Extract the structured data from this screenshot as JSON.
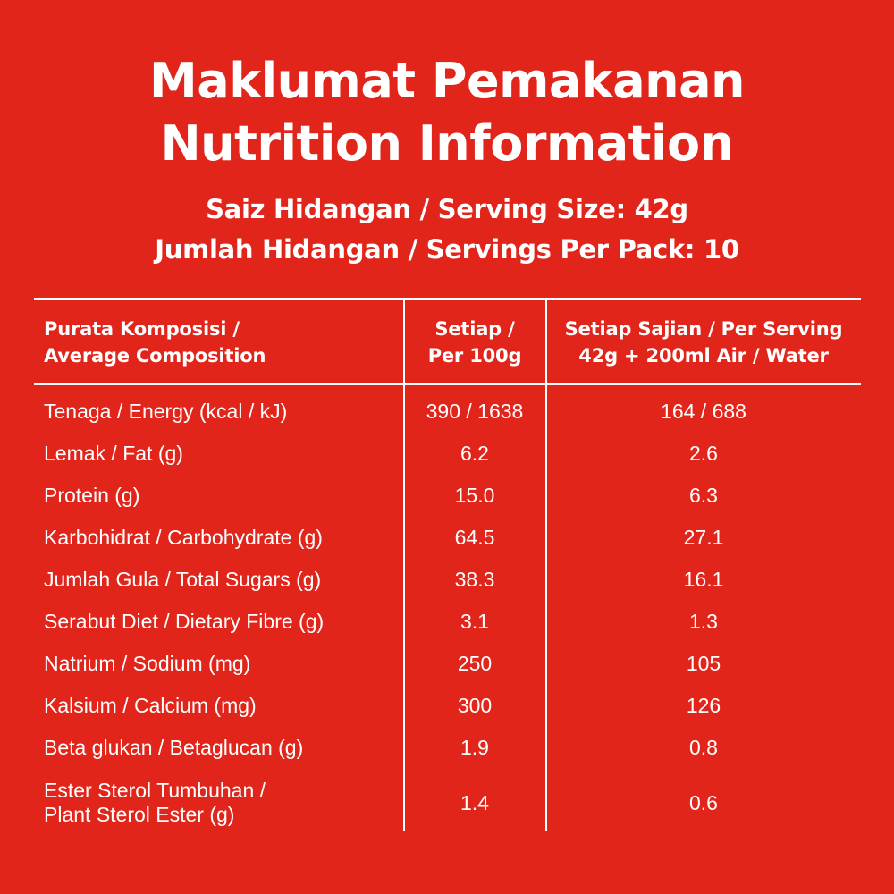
{
  "header": {
    "title_ms": "Maklumat Pemakanan",
    "title_en": "Nutrition Information",
    "serving_size": "Saiz Hidangan / Serving Size: 42g",
    "servings_per_pack": "Jumlah Hidangan / Servings Per Pack: 10"
  },
  "table": {
    "columns": {
      "composition": [
        "Purata Komposisi /",
        "Average Composition"
      ],
      "per_100g": [
        "Setiap /",
        "Per 100g"
      ],
      "per_serving": [
        "Setiap Sajian / Per Serving",
        "42g + 200ml Air / Water"
      ]
    },
    "rows": [
      {
        "name": "Tenaga / Energy (kcal / kJ)",
        "per_100g": "390 / 1638",
        "per_serving": "164 / 688"
      },
      {
        "name": "Lemak / Fat (g)",
        "per_100g": "6.2",
        "per_serving": "2.6"
      },
      {
        "name": "Protein (g)",
        "per_100g": "15.0",
        "per_serving": "6.3"
      },
      {
        "name": "Karbohidrat / Carbohydrate (g)",
        "per_100g": "64.5",
        "per_serving": "27.1"
      },
      {
        "name": "Jumlah Gula / Total Sugars (g)",
        "per_100g": "38.3",
        "per_serving": "16.1"
      },
      {
        "name": "Serabut Diet / Dietary Fibre (g)",
        "per_100g": "3.1",
        "per_serving": "1.3"
      },
      {
        "name": "Natrium / Sodium (mg)",
        "per_100g": "250",
        "per_serving": "105"
      },
      {
        "name": "Kalsium / Calcium (mg)",
        "per_100g": "300",
        "per_serving": "126"
      },
      {
        "name": "Beta glukan / Betaglucan (g)",
        "per_100g": "1.9",
        "per_serving": "0.8"
      },
      {
        "name_lines": [
          "Ester Sterol Tumbuhan /",
          "Plant Sterol Ester (g)"
        ],
        "per_100g": "1.4",
        "per_serving": "0.6"
      }
    ]
  },
  "colors": {
    "background": "#e1251b",
    "text": "#ffffff"
  }
}
